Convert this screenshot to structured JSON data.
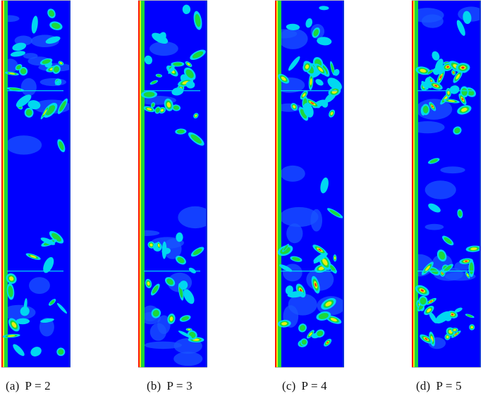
{
  "figure": {
    "colors": {
      "background": "#0000ff",
      "wall": "#ff1500",
      "cyan": "#00d8f0",
      "green": "#1cd83a",
      "yellow": "#e8ee10",
      "red": "#ff2010",
      "frame_line": "#b7b7b7"
    },
    "panels": [
      {
        "label": "(a)",
        "text": "P = 2",
        "vortex_pairs": 2
      },
      {
        "label": "(b)",
        "text": "P = 3",
        "vortex_pairs": 3
      },
      {
        "label": "(c)",
        "text": "P = 4",
        "vortex_pairs": 4
      },
      {
        "label": "(d)",
        "text": "P = 5",
        "vortex_pairs": 5
      }
    ]
  }
}
